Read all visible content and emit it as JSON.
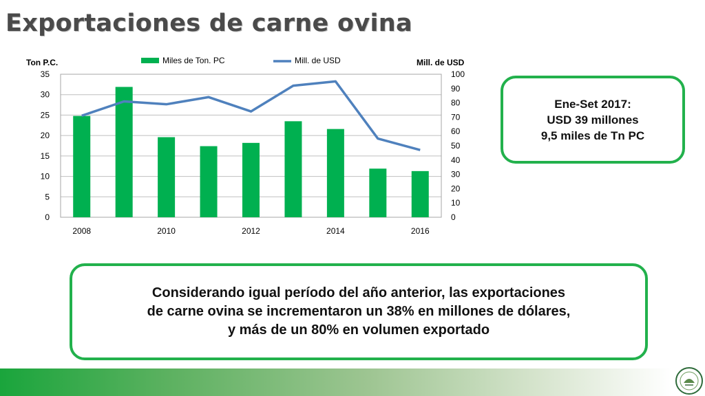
{
  "title": "Exportaciones de carne ovina",
  "chart_data": {
    "type": "bar",
    "x": [
      2008,
      2009,
      2010,
      2011,
      2012,
      2013,
      2014,
      2015,
      2016
    ],
    "tick_labels_x": [
      "2008",
      "2010",
      "2012",
      "2014",
      "2016"
    ],
    "series": [
      {
        "name": "Miles de Ton. PC",
        "type": "bar",
        "axis": "left",
        "color": "#00b050",
        "values": [
          24.8,
          31.9,
          19.6,
          17.4,
          18.2,
          23.5,
          21.6,
          11.9,
          11.3
        ]
      },
      {
        "name": "Mill. de USD",
        "type": "line",
        "axis": "right",
        "color": "#4f81bd",
        "values": [
          71,
          81,
          79,
          84,
          74,
          92,
          95,
          55,
          47
        ]
      }
    ],
    "ylabel_left": "Ton P.C.",
    "ylabel_right": "Mill. de USD",
    "ylim_left": [
      0,
      35
    ],
    "yticks_left": [
      0,
      5,
      10,
      15,
      20,
      25,
      30,
      35
    ],
    "ylim_right": [
      0,
      100
    ],
    "yticks_right": [
      0,
      10,
      20,
      30,
      40,
      50,
      60,
      70,
      80,
      90,
      100
    ],
    "grid": true,
    "legend": "top"
  },
  "callout": {
    "lines": [
      "Ene-Set 2017:",
      "USD 39 millones",
      "9,5 miles de Tn PC"
    ]
  },
  "summary": {
    "lines": [
      "Considerando igual período del año anterior, las exportaciones",
      "de carne ovina se incrementaron un 38% en millones de dólares,",
      "y más de un 80% en volumen exportado"
    ]
  }
}
